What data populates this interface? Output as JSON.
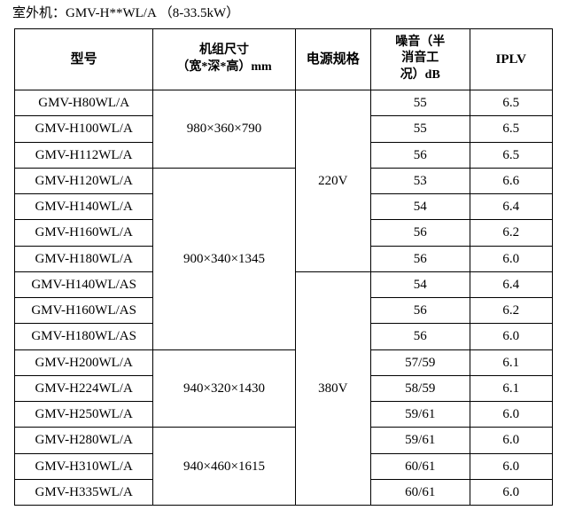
{
  "page": {
    "caption_label": "室外机：",
    "caption_value": "GMV-H**WL/A （8-33.5kW）",
    "table": {
      "headers": {
        "model": "型号",
        "size_line1": "机组尺寸",
        "size_line2": "（宽*深*高）mm",
        "power": "电源规格",
        "noise_line1": "噪音（半",
        "noise_line2": "消音工",
        "noise_line3": "况）dB",
        "iplv": "IPLV"
      },
      "size_groups": [
        {
          "size": "980×360×790",
          "span": 3
        },
        {
          "size": "900×340×1345",
          "span": 7
        },
        {
          "size": "940×320×1430",
          "span": 3
        },
        {
          "size": "940×460×1615",
          "span": 3
        }
      ],
      "power_groups": [
        {
          "power": "220V",
          "span": 7
        },
        {
          "power": "380V",
          "span": 9
        }
      ],
      "rows": [
        {
          "model": "GMV-H80WL/A",
          "noise": "55",
          "iplv": "6.5"
        },
        {
          "model": "GMV-H100WL/A",
          "noise": "55",
          "iplv": "6.5"
        },
        {
          "model": "GMV-H112WL/A",
          "noise": "56",
          "iplv": "6.5"
        },
        {
          "model": "GMV-H120WL/A",
          "noise": "53",
          "iplv": "6.6"
        },
        {
          "model": "GMV-H140WL/A",
          "noise": "54",
          "iplv": "6.4"
        },
        {
          "model": "GMV-H160WL/A",
          "noise": "56",
          "iplv": "6.2"
        },
        {
          "model": "GMV-H180WL/A",
          "noise": "56",
          "iplv": "6.0"
        },
        {
          "model": "GMV-H140WL/AS",
          "noise": "54",
          "iplv": "6.4"
        },
        {
          "model": "GMV-H160WL/AS",
          "noise": "56",
          "iplv": "6.2"
        },
        {
          "model": "GMV-H180WL/AS",
          "noise": "56",
          "iplv": "6.0"
        },
        {
          "model": "GMV-H200WL/A",
          "noise": "57/59",
          "iplv": "6.1"
        },
        {
          "model": "GMV-H224WL/A",
          "noise": "58/59",
          "iplv": "6.1"
        },
        {
          "model": "GMV-H250WL/A",
          "noise": "59/61",
          "iplv": "6.0"
        },
        {
          "model": "GMV-H280WL/A",
          "noise": "59/61",
          "iplv": "6.0"
        },
        {
          "model": "GMV-H310WL/A",
          "noise": "60/61",
          "iplv": "6.0"
        },
        {
          "model": "GMV-H335WL/A",
          "noise": "60/61",
          "iplv": "6.0"
        }
      ]
    }
  }
}
